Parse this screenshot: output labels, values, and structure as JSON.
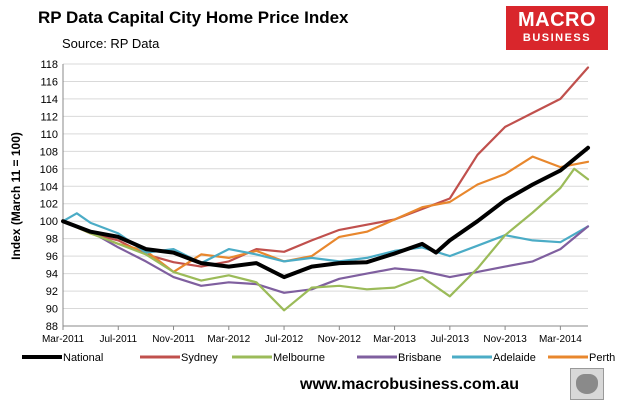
{
  "header": {
    "title": "RP Data Capital City Home Price Index",
    "source": "Source: RP Data"
  },
  "logo": {
    "line1": "MACRO",
    "line2": "BUSINESS"
  },
  "footer": {
    "url": "www.macrobusiness.com.au"
  },
  "colors": {
    "National": "#000000",
    "Sydney": "#c0504d",
    "Melbourne": "#9bbb59",
    "Brisbane": "#7f5f9f",
    "Adelaide": "#4bacc6",
    "Perth": "#e8872d",
    "logo_bg": "#d9262c"
  },
  "chart_data": {
    "type": "line",
    "title": "RP Data Capital City Home Price Index",
    "ylabel": "Index (March 11 = 100)",
    "xlabel": "",
    "ylim": [
      88,
      118
    ],
    "yticks": [
      88,
      90,
      92,
      94,
      96,
      98,
      100,
      102,
      104,
      106,
      108,
      110,
      112,
      114,
      116,
      118
    ],
    "xlim": [
      "2011-03",
      "2014-05"
    ],
    "xtick_labels": [
      "Mar-2011",
      "Jul-2011",
      "Nov-2011",
      "Mar-2012",
      "Jul-2012",
      "Nov-2012",
      "Mar-2013",
      "Jul-2013",
      "Nov-2013",
      "Mar-2014"
    ],
    "xtick_dates": [
      "2011-03",
      "2011-07",
      "2011-11",
      "2012-03",
      "2012-07",
      "2012-11",
      "2013-03",
      "2013-07",
      "2013-11",
      "2014-03"
    ],
    "grid": "horizontal",
    "legend_position": "bottom",
    "series": [
      {
        "name": "National",
        "x": [
          "2011-03",
          "2011-05",
          "2011-07",
          "2011-09",
          "2011-11",
          "2012-01",
          "2012-03",
          "2012-05",
          "2012-07",
          "2012-09",
          "2012-11",
          "2013-01",
          "2013-03",
          "2013-05",
          "2013-06",
          "2013-07",
          "2013-09",
          "2013-11",
          "2014-01",
          "2014-03",
          "2014-05"
        ],
        "values": [
          100,
          98.8,
          98.2,
          96.8,
          96.4,
          95.2,
          94.8,
          95.2,
          93.6,
          94.8,
          95.2,
          95.3,
          96.3,
          97.4,
          96.4,
          97.8,
          100,
          102.4,
          104.2,
          105.8,
          108.4
        ]
      },
      {
        "name": "Sydney",
        "x": [
          "2011-03",
          "2011-05",
          "2011-07",
          "2011-09",
          "2011-11",
          "2012-01",
          "2012-03",
          "2012-05",
          "2012-07",
          "2012-09",
          "2012-11",
          "2013-01",
          "2013-03",
          "2013-05",
          "2013-07",
          "2013-09",
          "2013-11",
          "2014-01",
          "2014-03",
          "2014-05"
        ],
        "values": [
          100,
          98.6,
          97.8,
          96.2,
          95.3,
          94.8,
          95.4,
          96.8,
          96.5,
          97.8,
          99,
          99.6,
          100.2,
          101.4,
          102.6,
          107.6,
          110.8,
          112.4,
          114,
          117.6
        ]
      },
      {
        "name": "Melbourne",
        "x": [
          "2011-03",
          "2011-05",
          "2011-07",
          "2011-09",
          "2011-11",
          "2012-01",
          "2012-03",
          "2012-05",
          "2012-07",
          "2012-09",
          "2012-11",
          "2013-01",
          "2013-03",
          "2013-05",
          "2013-07",
          "2013-09",
          "2013-11",
          "2014-01",
          "2014-03",
          "2014-04",
          "2014-05"
        ],
        "values": [
          100,
          98.6,
          97.4,
          96.2,
          94.2,
          93.2,
          93.8,
          93,
          89.8,
          92.4,
          92.6,
          92.2,
          92.4,
          93.6,
          91.4,
          94.6,
          98.4,
          101,
          103.8,
          106,
          104.8
        ]
      },
      {
        "name": "Brisbane",
        "x": [
          "2011-03",
          "2011-05",
          "2011-07",
          "2011-09",
          "2011-11",
          "2012-01",
          "2012-03",
          "2012-05",
          "2012-07",
          "2012-09",
          "2012-11",
          "2013-01",
          "2013-03",
          "2013-05",
          "2013-07",
          "2013-09",
          "2013-11",
          "2014-01",
          "2014-03",
          "2014-05"
        ],
        "values": [
          100,
          98.8,
          97,
          95.4,
          93.6,
          92.6,
          93,
          92.8,
          91.8,
          92.2,
          93.4,
          94,
          94.6,
          94.3,
          93.6,
          94.2,
          94.8,
          95.4,
          96.8,
          99.4
        ]
      },
      {
        "name": "Adelaide",
        "x": [
          "2011-03",
          "2011-04",
          "2011-05",
          "2011-07",
          "2011-09",
          "2011-11",
          "2012-01",
          "2012-03",
          "2012-05",
          "2012-07",
          "2012-09",
          "2012-11",
          "2013-01",
          "2013-03",
          "2013-05",
          "2013-07",
          "2013-09",
          "2013-11",
          "2014-01",
          "2014-03",
          "2014-05"
        ],
        "values": [
          100,
          100.9,
          99.8,
          98.6,
          96.4,
          96.8,
          95.2,
          96.8,
          96.2,
          95.4,
          95.8,
          95.4,
          95.8,
          96.6,
          97,
          96,
          97.2,
          98.4,
          97.8,
          97.6,
          99.4
        ]
      },
      {
        "name": "Perth",
        "x": [
          "2011-03",
          "2011-05",
          "2011-07",
          "2011-09",
          "2011-11",
          "2012-01",
          "2012-03",
          "2012-05",
          "2012-07",
          "2012-09",
          "2012-11",
          "2013-01",
          "2013-03",
          "2013-05",
          "2013-07",
          "2013-09",
          "2013-11",
          "2014-01",
          "2014-03",
          "2014-05"
        ],
        "values": [
          100,
          98.6,
          97.4,
          96.6,
          94.2,
          96.2,
          95.8,
          96.6,
          95.4,
          96,
          98.2,
          98.8,
          100.2,
          101.6,
          102.2,
          104.2,
          105.4,
          107.4,
          106.2,
          106.8
        ]
      }
    ]
  }
}
